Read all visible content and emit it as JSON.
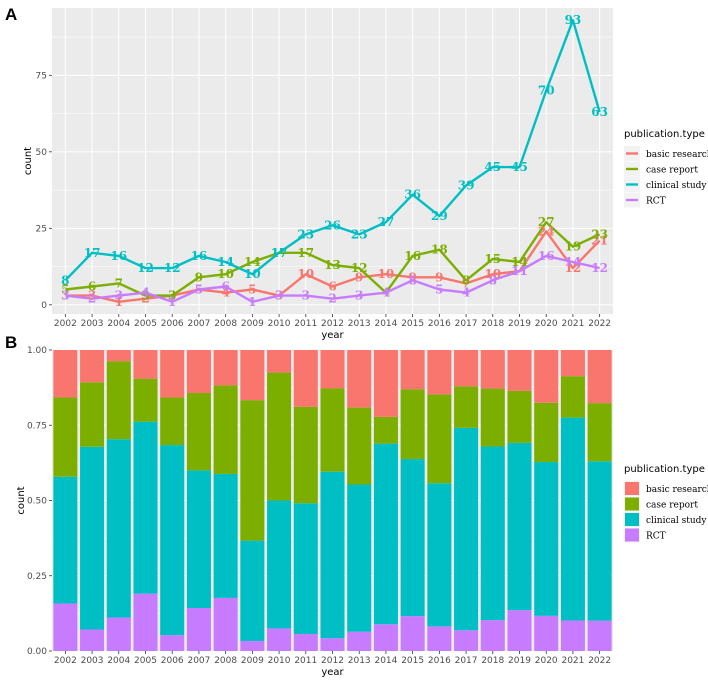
{
  "panels": {
    "a_label": "A",
    "b_label": "B"
  },
  "colors": {
    "basic research": "#F8766D",
    "case report": "#7CAE00",
    "clinical study": "#00BFC4",
    "RCT": "#C77CFF",
    "panel_bg": "#EBEBEB",
    "grid": "#FFFFFF"
  },
  "legend": {
    "title": "publication.type",
    "entries": [
      "basic research",
      "case report",
      "clinical study",
      "RCT"
    ]
  },
  "chart_data": [
    {
      "type": "line",
      "panel": "A",
      "xlabel": "year",
      "ylabel": "count",
      "ylim": [
        -3,
        97
      ],
      "yticks": [
        0,
        25,
        50,
        75
      ],
      "x": [
        "2002",
        "2003",
        "2004",
        "2005",
        "2006",
        "2007",
        "2008",
        "2009",
        "2010",
        "2011",
        "2012",
        "2013",
        "2014",
        "2015",
        "2016",
        "2017",
        "2018",
        "2019",
        "2020",
        "2021",
        "2022"
      ],
      "series": [
        {
          "name": "basic research",
          "values": [
            3,
            3,
            1,
            2,
            3,
            5,
            4,
            5,
            3,
            10,
            6,
            9,
            10,
            9,
            9,
            7,
            10,
            11,
            24,
            12,
            21
          ]
        },
        {
          "name": "case report",
          "values": [
            5,
            6,
            7,
            3,
            3,
            9,
            10,
            14,
            17,
            17,
            13,
            12,
            4,
            16,
            18,
            8,
            15,
            14,
            27,
            19,
            23
          ]
        },
        {
          "name": "clinical study",
          "values": [
            8,
            17,
            16,
            12,
            12,
            16,
            14,
            10,
            17,
            23,
            26,
            23,
            27,
            36,
            29,
            39,
            45,
            45,
            70,
            93,
            63
          ]
        },
        {
          "name": "RCT",
          "values": [
            3,
            2,
            3,
            4,
            1,
            5,
            6,
            1,
            3,
            3,
            2,
            3,
            4,
            8,
            5,
            4,
            8,
            11,
            16,
            14,
            12
          ]
        }
      ]
    },
    {
      "type": "bar",
      "stacked": "fill",
      "panel": "B",
      "xlabel": "year",
      "ylabel": "count",
      "ylim": [
        0,
        1
      ],
      "yticks": [
        "0.00",
        "0.25",
        "0.50",
        "0.75",
        "1.00"
      ],
      "categories": [
        "2002",
        "2003",
        "2004",
        "2005",
        "2006",
        "2007",
        "2008",
        "2009",
        "2010",
        "2011",
        "2012",
        "2013",
        "2014",
        "2015",
        "2016",
        "2017",
        "2018",
        "2019",
        "2020",
        "2021",
        "2022"
      ],
      "stack_order_bottom_to_top": [
        "RCT",
        "clinical study",
        "case report",
        "basic research"
      ]
    }
  ]
}
